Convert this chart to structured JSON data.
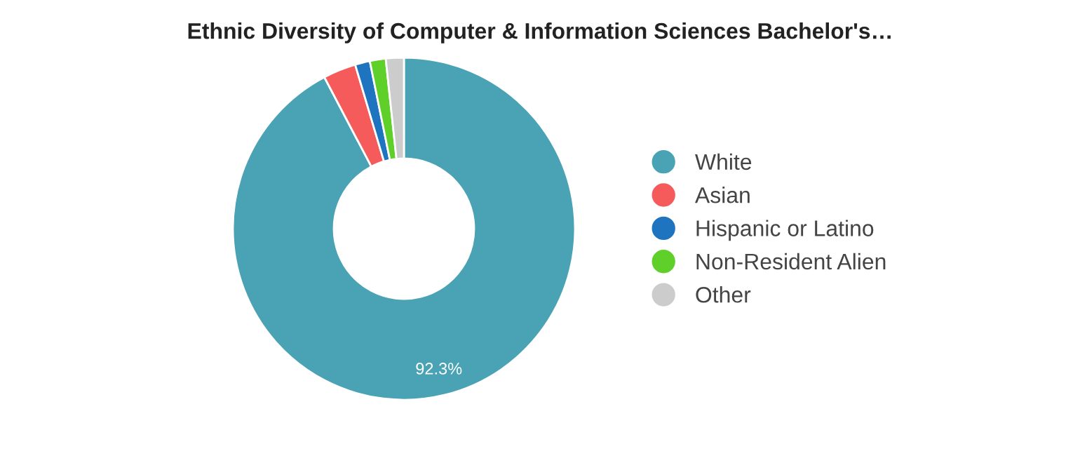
{
  "chart_data": {
    "type": "donut",
    "title": "Ethnic Diversity of Computer & Information Sciences Bachelor's…",
    "categories": [
      "White",
      "Asian",
      "Hispanic or Latino",
      "Non-Resident Alien",
      "Other"
    ],
    "values": [
      92.3,
      3.1,
      1.4,
      1.5,
      1.7
    ],
    "colors": [
      "#4aa3b5",
      "#f55b5b",
      "#1f74c0",
      "#5fcf2a",
      "#cccccc"
    ],
    "value_labels": [
      "92.3%",
      null,
      null,
      null,
      null
    ],
    "legend": "right"
  }
}
